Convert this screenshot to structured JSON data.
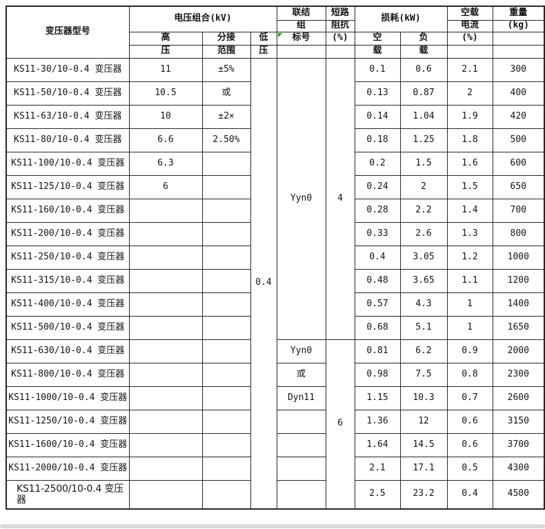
{
  "colors": {
    "background": "#ffffff",
    "table_border": "#262626",
    "marker_green": "#18a018",
    "bottom_bar_grey": "#d9d9d9"
  },
  "table": {
    "header": {
      "model": "变压器型号",
      "voltage_group": "电压组合(kV)",
      "hv_line1": "高",
      "hv_line2": "压",
      "tap_line1": "分接",
      "tap_line2": "范围",
      "lv_line1": "低",
      "lv_line2": "压",
      "conn_line1": "联结",
      "conn_line2": "组",
      "conn_line3": "标号",
      "imp_line1": "短路",
      "imp_line2": "阻抗",
      "imp_line3": "(%)",
      "loss_group": "损耗(kW)",
      "noload_line1": "空",
      "noload_line2": "载",
      "load_line1": "负",
      "load_line2": "载",
      "current_line1": "空载",
      "current_line2": "电流",
      "current_line3": "(%)",
      "weight_line1": "重量",
      "weight_line2": "(kg)"
    },
    "merged": {
      "low_voltage": "0.4",
      "group1_connection": "Yyn0",
      "group1_impedance": "4",
      "group2_impedance": "6",
      "group1_row_count": 12,
      "group2_row_count": 7
    },
    "rows": [
      {
        "model": "KS11-30/10-0.4 变压器",
        "hv": "11",
        "tap": "±5%",
        "conn": null,
        "noload": "0.1",
        "load": "0.6",
        "current": "2.1",
        "weight": "300"
      },
      {
        "model": "KS11-50/10-0.4 变压器",
        "hv": "10.5",
        "tap": "或",
        "conn": null,
        "noload": "0.13",
        "load": "0.87",
        "current": "2",
        "weight": "400"
      },
      {
        "model": "KS11-63/10-0.4 变压器",
        "hv": "10",
        "tap": "±2×",
        "conn": null,
        "noload": "0.14",
        "load": "1.04",
        "current": "1.9",
        "weight": "420"
      },
      {
        "model": "KS11-80/10-0.4 变压器",
        "hv": "6.6",
        "tap": "2.50%",
        "conn": null,
        "noload": "0.18",
        "load": "1.25",
        "current": "1.8",
        "weight": "500"
      },
      {
        "model": "KS11-100/10-0.4 变压器",
        "hv": "6.3",
        "tap": "",
        "conn": null,
        "noload": "0.2",
        "load": "1.5",
        "current": "1.6",
        "weight": "600"
      },
      {
        "model": "KS11-125/10-0.4 变压器",
        "hv": "6",
        "tap": "",
        "conn": null,
        "noload": "0.24",
        "load": "2",
        "current": "1.5",
        "weight": "650"
      },
      {
        "model": "KS11-160/10-0.4 变压器",
        "hv": "",
        "tap": "",
        "conn": null,
        "noload": "0.28",
        "load": "2.2",
        "current": "1.4",
        "weight": "700"
      },
      {
        "model": "KS11-200/10-0.4 变压器",
        "hv": "",
        "tap": "",
        "conn": null,
        "noload": "0.33",
        "load": "2.6",
        "current": "1.3",
        "weight": "800"
      },
      {
        "model": "KS11-250/10-0.4 变压器",
        "hv": "",
        "tap": "",
        "conn": null,
        "noload": "0.4",
        "load": "3.05",
        "current": "1.2",
        "weight": "1000"
      },
      {
        "model": "KS11-315/10-0.4 变压器",
        "hv": "",
        "tap": "",
        "conn": null,
        "noload": "0.48",
        "load": "3.65",
        "current": "1.1",
        "weight": "1200"
      },
      {
        "model": "KS11-400/10-0.4 变压器",
        "hv": "",
        "tap": "",
        "conn": null,
        "noload": "0.57",
        "load": "4.3",
        "current": "1",
        "weight": "1400"
      },
      {
        "model": "KS11-500/10-0.4 变压器",
        "hv": "",
        "tap": "",
        "conn": null,
        "noload": "0.68",
        "load": "5.1",
        "current": "1",
        "weight": "1650"
      },
      {
        "model": "KS11-630/10-0.4 变压器",
        "hv": "",
        "tap": "",
        "conn": "Yyn0",
        "noload": "0.81",
        "load": "6.2",
        "current": "0.9",
        "weight": "2000"
      },
      {
        "model": "KS11-800/10-0.4 变压器",
        "hv": "",
        "tap": "",
        "conn": "或",
        "noload": "0.98",
        "load": "7.5",
        "current": "0.8",
        "weight": "2300"
      },
      {
        "model": "KS11-1000/10-0.4 变压器",
        "hv": "",
        "tap": "",
        "conn": "Dyn11",
        "noload": "1.15",
        "load": "10.3",
        "current": "0.7",
        "weight": "2600"
      },
      {
        "model": "KS11-1250/10-0.4 变压器",
        "hv": "",
        "tap": "",
        "conn": "",
        "noload": "1.36",
        "load": "12",
        "current": "0.6",
        "weight": "3150"
      },
      {
        "model": "KS11-1600/10-0.4 变压器",
        "hv": "",
        "tap": "",
        "conn": "",
        "noload": "1.64",
        "load": "14.5",
        "current": "0.6",
        "weight": "3700"
      },
      {
        "model": "KS11-2000/10-0.4 变压器",
        "hv": "",
        "tap": "",
        "conn": "",
        "noload": "2.1",
        "load": "17.1",
        "current": "0.5",
        "weight": "4300"
      },
      {
        "model": "KS11-2500/10-0.4 变压器",
        "hv": "",
        "tap": "",
        "conn": "",
        "noload": "2.5",
        "load": "23.2",
        "current": "0.4",
        "weight": "4500"
      }
    ]
  }
}
